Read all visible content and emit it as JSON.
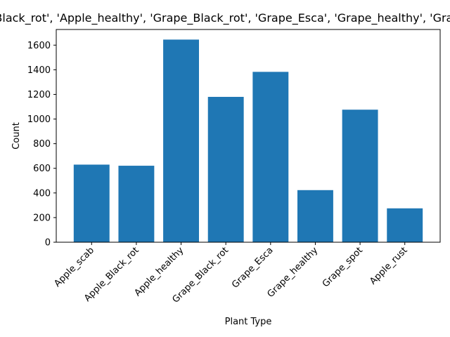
{
  "chart_data": {
    "type": "bar",
    "title": "['Apple_scab', 'Apple_Black_rot', 'Apple_healthy', 'Grape_Black_rot', 'Grape_Esca', 'Grape_healthy', 'Grape_spot', 'Apple_rust']",
    "xlabel": "Plant Type",
    "ylabel": "Count",
    "categories": [
      "Apple_scab",
      "Apple_Black_rot",
      "Apple_healthy",
      "Grape_Black_rot",
      "Grape_Esca",
      "Grape_healthy",
      "Grape_spot",
      "Apple_rust"
    ],
    "values": [
      630,
      621,
      1645,
      1180,
      1383,
      423,
      1076,
      275
    ],
    "ylim": [
      0,
      1727
    ],
    "yticks": [
      0,
      200,
      400,
      600,
      800,
      1000,
      1200,
      1400,
      1600
    ],
    "bar_color": "#1f77b4",
    "grid": false,
    "legend": "none"
  }
}
